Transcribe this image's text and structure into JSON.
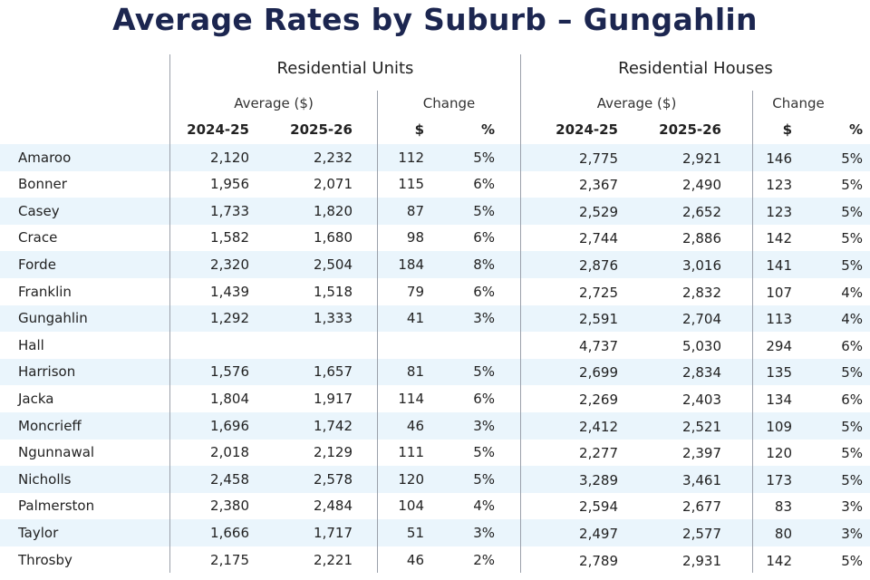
{
  "title": "Average Rates by Suburb – Gungahlin",
  "units": {
    "group_label": "Residential Units",
    "average_label": "Average ($)",
    "change_label": "Change",
    "years": [
      "2024-25",
      "2025-26"
    ],
    "change_cols": [
      "$",
      "%"
    ]
  },
  "houses": {
    "group_label": "Residential Houses",
    "average_label": "Average ($)",
    "change_label": "Change",
    "years": [
      "2024-25",
      "2025-26"
    ],
    "change_cols": [
      "$",
      "%"
    ]
  },
  "rows": [
    {
      "suburb": "Amaroo",
      "u1": "2,120",
      "u2": "2,232",
      "ud": "112",
      "up": "5%",
      "h1": "2,775",
      "h2": "2,921",
      "hd": "146",
      "hp": "5%"
    },
    {
      "suburb": "Bonner",
      "u1": "1,956",
      "u2": "2,071",
      "ud": "115",
      "up": "6%",
      "h1": "2,367",
      "h2": "2,490",
      "hd": "123",
      "hp": "5%"
    },
    {
      "suburb": "Casey",
      "u1": "1,733",
      "u2": "1,820",
      "ud": "87",
      "up": "5%",
      "h1": "2,529",
      "h2": "2,652",
      "hd": "123",
      "hp": "5%"
    },
    {
      "suburb": "Crace",
      "u1": "1,582",
      "u2": "1,680",
      "ud": "98",
      "up": "6%",
      "h1": "2,744",
      "h2": "2,886",
      "hd": "142",
      "hp": "5%"
    },
    {
      "suburb": "Forde",
      "u1": "2,320",
      "u2": "2,504",
      "ud": "184",
      "up": "8%",
      "h1": "2,876",
      "h2": "3,016",
      "hd": "141",
      "hp": "5%"
    },
    {
      "suburb": "Franklin",
      "u1": "1,439",
      "u2": "1,518",
      "ud": "79",
      "up": "6%",
      "h1": "2,725",
      "h2": "2,832",
      "hd": "107",
      "hp": "4%"
    },
    {
      "suburb": "Gungahlin",
      "u1": "1,292",
      "u2": "1,333",
      "ud": "41",
      "up": "3%",
      "h1": "2,591",
      "h2": "2,704",
      "hd": "113",
      "hp": "4%"
    },
    {
      "suburb": "Hall",
      "u1": "",
      "u2": "",
      "ud": "",
      "up": "",
      "h1": "4,737",
      "h2": "5,030",
      "hd": "294",
      "hp": "6%"
    },
    {
      "suburb": "Harrison",
      "u1": "1,576",
      "u2": "1,657",
      "ud": "81",
      "up": "5%",
      "h1": "2,699",
      "h2": "2,834",
      "hd": "135",
      "hp": "5%"
    },
    {
      "suburb": "Jacka",
      "u1": "1,804",
      "u2": "1,917",
      "ud": "114",
      "up": "6%",
      "h1": "2,269",
      "h2": "2,403",
      "hd": "134",
      "hp": "6%"
    },
    {
      "suburb": "Moncrieff",
      "u1": "1,696",
      "u2": "1,742",
      "ud": "46",
      "up": "3%",
      "h1": "2,412",
      "h2": "2,521",
      "hd": "109",
      "hp": "5%"
    },
    {
      "suburb": "Ngunnawal",
      "u1": "2,018",
      "u2": "2,129",
      "ud": "111",
      "up": "5%",
      "h1": "2,277",
      "h2": "2,397",
      "hd": "120",
      "hp": "5%"
    },
    {
      "suburb": "Nicholls",
      "u1": "2,458",
      "u2": "2,578",
      "ud": "120",
      "up": "5%",
      "h1": "3,289",
      "h2": "3,461",
      "hd": "173",
      "hp": "5%"
    },
    {
      "suburb": "Palmerston",
      "u1": "2,380",
      "u2": "2,484",
      "ud": "104",
      "up": "4%",
      "h1": "2,594",
      "h2": "2,677",
      "hd": "83",
      "hp": "3%"
    },
    {
      "suburb": "Taylor",
      "u1": "1,666",
      "u2": "1,717",
      "ud": "51",
      "up": "3%",
      "h1": "2,497",
      "h2": "2,577",
      "hd": "80",
      "hp": "3%"
    },
    {
      "suburb": "Throsby",
      "u1": "2,175",
      "u2": "2,221",
      "ud": "46",
      "up": "2%",
      "h1": "2,789",
      "h2": "2,931",
      "hd": "142",
      "hp": "5%"
    }
  ],
  "colors": {
    "title": "#1c2650",
    "band": "#eaf5fc",
    "divider": "#9aa0aa"
  }
}
